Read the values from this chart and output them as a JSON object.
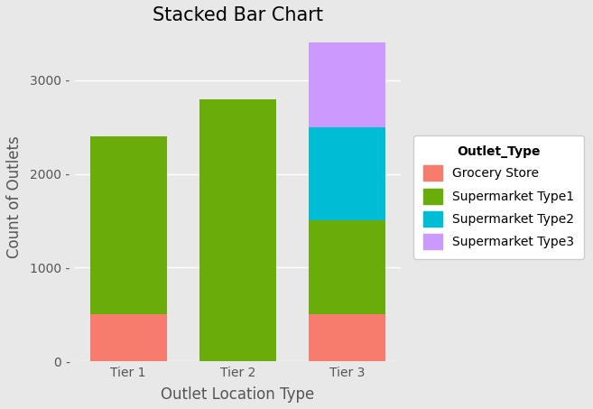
{
  "title": "Stacked Bar Chart",
  "xlabel": "Outlet Location Type",
  "ylabel": "Count of Outlets",
  "categories": [
    "Tier 1",
    "Tier 2",
    "Tier 3"
  ],
  "legend_title": "Outlet_Type",
  "legend_labels": [
    "Grocery Store",
    "Supermarket Type1",
    "Supermarket Type2",
    "Supermarket Type3"
  ],
  "colors": {
    "Grocery Store": "#F87C6E",
    "Supermarket Type1": "#6AAC0A",
    "Supermarket Type2": "#00BCD4",
    "Supermarket Type3": "#CC99FF"
  },
  "data": {
    "Grocery Store": [
      500,
      0,
      500
    ],
    "Supermarket Type1": [
      1900,
      2800,
      1000
    ],
    "Supermarket Type2": [
      0,
      0,
      1000
    ],
    "Supermarket Type3": [
      0,
      0,
      900
    ]
  },
  "ylim": [
    0,
    3500
  ],
  "yticks": [
    0,
    1000,
    2000,
    3000
  ],
  "background_color": "#E8E8E8",
  "plot_bg_color": "#E8E8E8",
  "grid_color": "#FFFFFF",
  "title_fontsize": 15,
  "axis_label_fontsize": 12,
  "tick_fontsize": 10,
  "legend_fontsize": 10,
  "bar_width": 0.7
}
